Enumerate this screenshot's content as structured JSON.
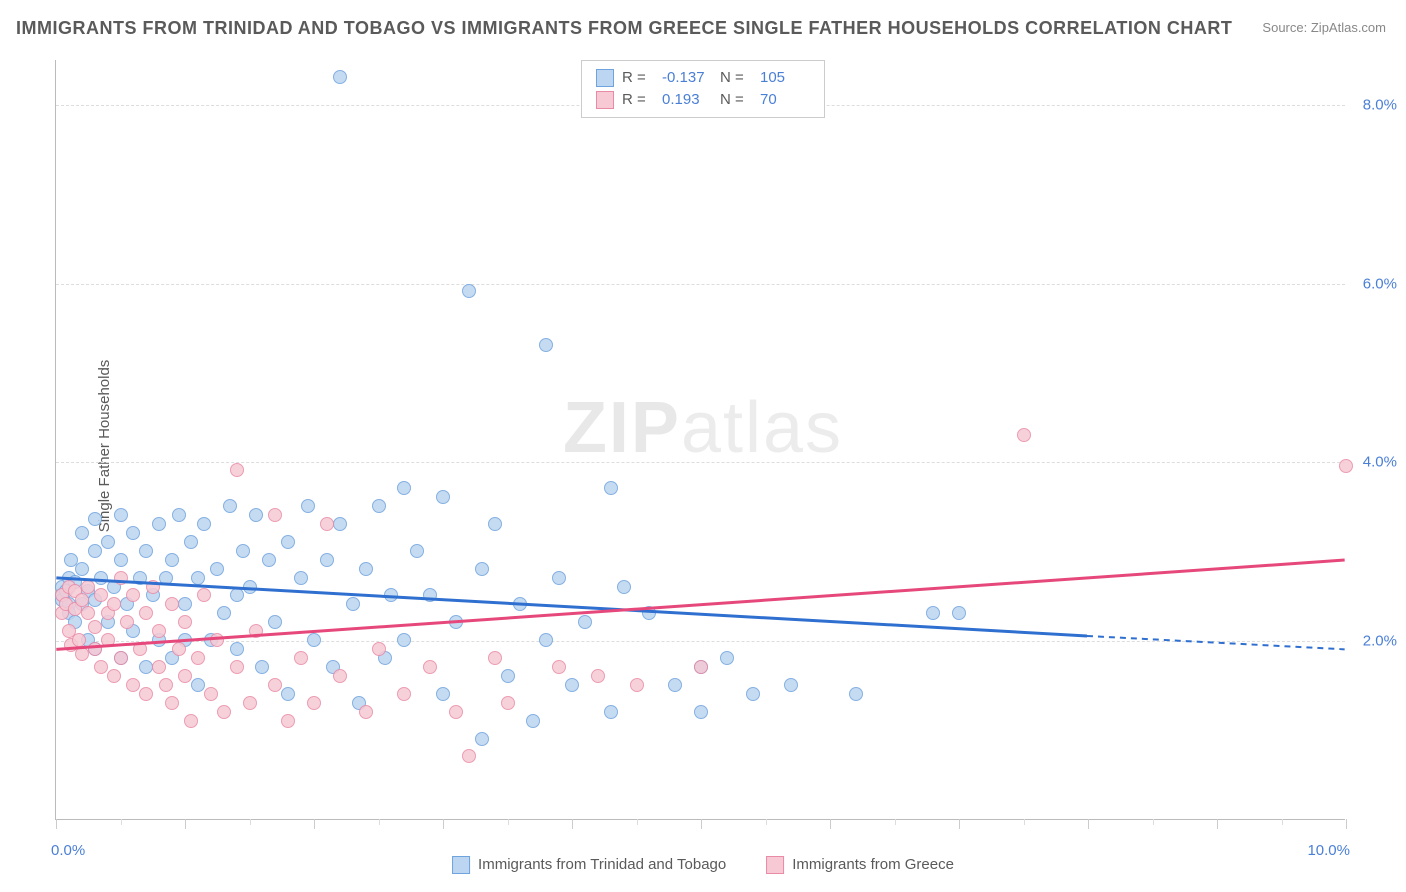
{
  "title": "IMMIGRANTS FROM TRINIDAD AND TOBAGO VS IMMIGRANTS FROM GREECE SINGLE FATHER HOUSEHOLDS CORRELATION CHART",
  "source_label": "Source:",
  "source_value": "ZipAtlas.com",
  "ylabel": "Single Father Households",
  "watermark_bold": "ZIP",
  "watermark_thin": "atlas",
  "chart": {
    "type": "scatter",
    "xlim": [
      0,
      10
    ],
    "ylim": [
      0,
      8.5
    ],
    "x_tick_min": "0.0%",
    "x_tick_max": "10.0%",
    "y_ticks": [
      {
        "v": 2.0,
        "label": "2.0%"
      },
      {
        "v": 4.0,
        "label": "4.0%"
      },
      {
        "v": 6.0,
        "label": "6.0%"
      },
      {
        "v": 8.0,
        "label": "8.0%"
      }
    ],
    "x_major_ticks": [
      0,
      1,
      2,
      3,
      4,
      5,
      6,
      7,
      8,
      9,
      10
    ],
    "x_minor_ticks": [
      0.5,
      1.5,
      2.5,
      3.5,
      4.5,
      5.5,
      6.5,
      7.5,
      8.5,
      9.5
    ],
    "grid_color": "#dddddd",
    "axis_color": "#bbbbbb",
    "label_color": "#5a5a5a",
    "tick_label_color": "#4a7fd6",
    "background_color": "#ffffff",
    "marker_radius": 7,
    "series": [
      {
        "name": "Immigrants from Trinidad and Tobago",
        "fill": "#bcd5f0",
        "stroke": "#6fa3dd",
        "line_color": "#2f6fd0",
        "R": "-0.137",
        "N": "105",
        "trend": {
          "x1": 0,
          "y1": 2.7,
          "x2": 8.0,
          "y2": 2.05,
          "dash_x2": 10,
          "dash_y2": 1.9
        },
        "points": [
          [
            0.05,
            2.6
          ],
          [
            0.05,
            2.5
          ],
          [
            0.05,
            2.45
          ],
          [
            0.08,
            2.55
          ],
          [
            0.1,
            2.7
          ],
          [
            0.1,
            2.4
          ],
          [
            0.1,
            2.3
          ],
          [
            0.12,
            2.9
          ],
          [
            0.15,
            2.65
          ],
          [
            0.15,
            2.2
          ],
          [
            0.2,
            3.2
          ],
          [
            0.2,
            2.8
          ],
          [
            0.2,
            2.4
          ],
          [
            0.25,
            2.0
          ],
          [
            0.25,
            2.55
          ],
          [
            0.3,
            3.35
          ],
          [
            0.3,
            3.0
          ],
          [
            0.3,
            2.45
          ],
          [
            0.3,
            1.9
          ],
          [
            0.35,
            2.7
          ],
          [
            0.4,
            3.1
          ],
          [
            0.4,
            2.2
          ],
          [
            0.45,
            2.6
          ],
          [
            0.5,
            3.4
          ],
          [
            0.5,
            2.9
          ],
          [
            0.5,
            1.8
          ],
          [
            0.55,
            2.4
          ],
          [
            0.6,
            3.2
          ],
          [
            0.6,
            2.1
          ],
          [
            0.65,
            2.7
          ],
          [
            0.7,
            3.0
          ],
          [
            0.7,
            1.7
          ],
          [
            0.75,
            2.5
          ],
          [
            0.8,
            3.3
          ],
          [
            0.8,
            2.0
          ],
          [
            0.85,
            2.7
          ],
          [
            0.9,
            2.9
          ],
          [
            0.9,
            1.8
          ],
          [
            0.95,
            3.4
          ],
          [
            1.0,
            2.4
          ],
          [
            1.0,
            2.0
          ],
          [
            1.05,
            3.1
          ],
          [
            1.1,
            2.7
          ],
          [
            1.1,
            1.5
          ],
          [
            1.15,
            3.3
          ],
          [
            1.2,
            2.0
          ],
          [
            1.25,
            2.8
          ],
          [
            1.3,
            2.3
          ],
          [
            1.35,
            3.5
          ],
          [
            1.4,
            1.9
          ],
          [
            1.4,
            2.5
          ],
          [
            1.45,
            3.0
          ],
          [
            1.5,
            2.6
          ],
          [
            1.55,
            3.4
          ],
          [
            1.6,
            1.7
          ],
          [
            1.65,
            2.9
          ],
          [
            1.7,
            2.2
          ],
          [
            1.8,
            3.1
          ],
          [
            1.8,
            1.4
          ],
          [
            1.9,
            2.7
          ],
          [
            1.95,
            3.5
          ],
          [
            2.0,
            2.0
          ],
          [
            2.1,
            2.9
          ],
          [
            2.15,
            1.7
          ],
          [
            2.2,
            8.3
          ],
          [
            2.2,
            3.3
          ],
          [
            2.3,
            2.4
          ],
          [
            2.35,
            1.3
          ],
          [
            2.4,
            2.8
          ],
          [
            2.5,
            3.5
          ],
          [
            2.55,
            1.8
          ],
          [
            2.6,
            2.5
          ],
          [
            2.7,
            3.7
          ],
          [
            2.7,
            2.0
          ],
          [
            2.8,
            3.0
          ],
          [
            2.9,
            2.5
          ],
          [
            3.0,
            3.6
          ],
          [
            3.0,
            1.4
          ],
          [
            3.1,
            2.2
          ],
          [
            3.2,
            5.9
          ],
          [
            3.3,
            2.8
          ],
          [
            3.3,
            0.9
          ],
          [
            3.4,
            3.3
          ],
          [
            3.5,
            1.6
          ],
          [
            3.6,
            2.4
          ],
          [
            3.7,
            1.1
          ],
          [
            3.8,
            5.3
          ],
          [
            3.8,
            2.0
          ],
          [
            3.9,
            2.7
          ],
          [
            4.0,
            1.5
          ],
          [
            4.1,
            2.2
          ],
          [
            4.3,
            3.7
          ],
          [
            4.3,
            1.2
          ],
          [
            4.4,
            2.6
          ],
          [
            4.6,
            2.3
          ],
          [
            4.8,
            1.5
          ],
          [
            5.0,
            1.7
          ],
          [
            5.0,
            1.2
          ],
          [
            5.2,
            1.8
          ],
          [
            5.4,
            1.4
          ],
          [
            5.7,
            1.5
          ],
          [
            6.2,
            1.4
          ],
          [
            6.8,
            2.3
          ],
          [
            7.0,
            2.3
          ]
        ]
      },
      {
        "name": "Immigrants from Greece",
        "fill": "#f6c9d4",
        "stroke": "#e98ba6",
        "line_color": "#e6487b",
        "R": "0.193",
        "N": "70",
        "trend": {
          "x1": 0,
          "y1": 1.9,
          "x2": 10,
          "y2": 2.9
        },
        "points": [
          [
            0.05,
            2.5
          ],
          [
            0.05,
            2.3
          ],
          [
            0.08,
            2.4
          ],
          [
            0.1,
            2.1
          ],
          [
            0.1,
            2.6
          ],
          [
            0.12,
            1.95
          ],
          [
            0.15,
            2.35
          ],
          [
            0.15,
            2.55
          ],
          [
            0.18,
            2.0
          ],
          [
            0.2,
            2.45
          ],
          [
            0.2,
            1.85
          ],
          [
            0.25,
            2.3
          ],
          [
            0.25,
            2.6
          ],
          [
            0.3,
            1.9
          ],
          [
            0.3,
            2.15
          ],
          [
            0.35,
            2.5
          ],
          [
            0.35,
            1.7
          ],
          [
            0.4,
            2.3
          ],
          [
            0.4,
            2.0
          ],
          [
            0.45,
            1.6
          ],
          [
            0.45,
            2.4
          ],
          [
            0.5,
            2.7
          ],
          [
            0.5,
            1.8
          ],
          [
            0.55,
            2.2
          ],
          [
            0.6,
            1.5
          ],
          [
            0.6,
            2.5
          ],
          [
            0.65,
            1.9
          ],
          [
            0.7,
            2.3
          ],
          [
            0.7,
            1.4
          ],
          [
            0.75,
            2.6
          ],
          [
            0.8,
            1.7
          ],
          [
            0.8,
            2.1
          ],
          [
            0.85,
            1.5
          ],
          [
            0.9,
            2.4
          ],
          [
            0.9,
            1.3
          ],
          [
            0.95,
            1.9
          ],
          [
            1.0,
            1.6
          ],
          [
            1.0,
            2.2
          ],
          [
            1.05,
            1.1
          ],
          [
            1.1,
            1.8
          ],
          [
            1.15,
            2.5
          ],
          [
            1.2,
            1.4
          ],
          [
            1.25,
            2.0
          ],
          [
            1.3,
            1.2
          ],
          [
            1.4,
            1.7
          ],
          [
            1.4,
            3.9
          ],
          [
            1.5,
            1.3
          ],
          [
            1.55,
            2.1
          ],
          [
            1.7,
            1.5
          ],
          [
            1.7,
            3.4
          ],
          [
            1.8,
            1.1
          ],
          [
            1.9,
            1.8
          ],
          [
            2.0,
            1.3
          ],
          [
            2.1,
            3.3
          ],
          [
            2.2,
            1.6
          ],
          [
            2.4,
            1.2
          ],
          [
            2.5,
            1.9
          ],
          [
            2.7,
            1.4
          ],
          [
            2.9,
            1.7
          ],
          [
            3.1,
            1.2
          ],
          [
            3.2,
            0.7
          ],
          [
            3.4,
            1.8
          ],
          [
            3.5,
            1.3
          ],
          [
            3.9,
            1.7
          ],
          [
            4.2,
            1.6
          ],
          [
            4.5,
            1.5
          ],
          [
            5.0,
            1.7
          ],
          [
            7.5,
            4.3
          ],
          [
            10.0,
            3.95
          ]
        ]
      }
    ]
  },
  "legend_top": {
    "r_label": "R =",
    "n_label": "N ="
  }
}
